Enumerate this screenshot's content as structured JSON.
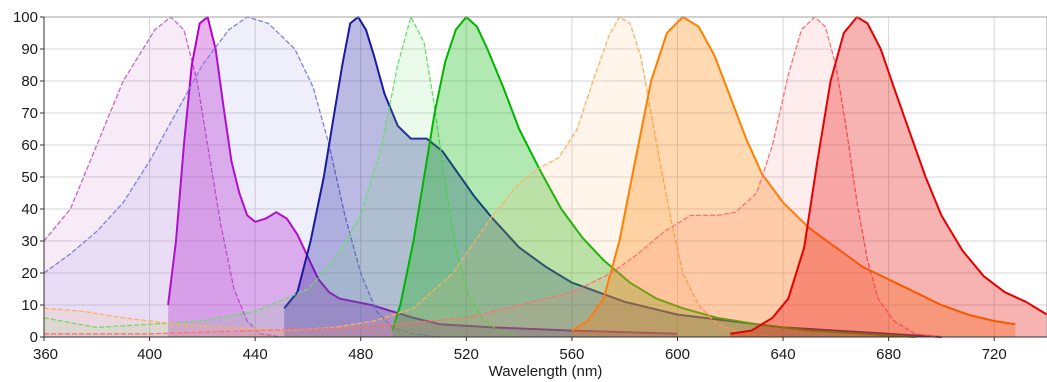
{
  "chart_data": {
    "type": "area",
    "title": "",
    "xlabel": "Wavelength (nm)",
    "ylabel": "",
    "xlim": [
      360,
      740
    ],
    "ylim": [
      0,
      100
    ],
    "x_ticks": [
      360,
      400,
      440,
      480,
      520,
      560,
      600,
      640,
      680,
      720
    ],
    "y_ticks": [
      0,
      10,
      20,
      30,
      40,
      50,
      60,
      70,
      80,
      90,
      100
    ],
    "grid": true,
    "legend": "none",
    "series": [
      {
        "color": "#c766c7",
        "line": "dashed",
        "role": "excitation",
        "points": [
          [
            360,
            30
          ],
          [
            370,
            40
          ],
          [
            380,
            60
          ],
          [
            390,
            80
          ],
          [
            396,
            88
          ],
          [
            402,
            96
          ],
          [
            408,
            100
          ],
          [
            413,
            96
          ],
          [
            418,
            80
          ],
          [
            422,
            60
          ],
          [
            427,
            35
          ],
          [
            432,
            15
          ],
          [
            437,
            5
          ],
          [
            442,
            1
          ],
          [
            450,
            0
          ]
        ]
      },
      {
        "color": "#b400c8",
        "line": "solid",
        "role": "emission",
        "points": [
          [
            407,
            10
          ],
          [
            410,
            30
          ],
          [
            413,
            60
          ],
          [
            416,
            85
          ],
          [
            419,
            98
          ],
          [
            422,
            100
          ],
          [
            425,
            90
          ],
          [
            428,
            72
          ],
          [
            431,
            55
          ],
          [
            434,
            45
          ],
          [
            437,
            38
          ],
          [
            440,
            36
          ],
          [
            444,
            37
          ],
          [
            448,
            39
          ],
          [
            452,
            37
          ],
          [
            456,
            32
          ],
          [
            460,
            25
          ],
          [
            464,
            18
          ],
          [
            468,
            14
          ],
          [
            472,
            12
          ],
          [
            478,
            11
          ],
          [
            484,
            10
          ],
          [
            492,
            8
          ],
          [
            500,
            6
          ],
          [
            510,
            4
          ],
          [
            530,
            3
          ],
          [
            560,
            2
          ],
          [
            600,
            1
          ]
        ]
      },
      {
        "color": "#8080e0",
        "line": "dashed",
        "role": "excitation",
        "points": [
          [
            360,
            20
          ],
          [
            370,
            26
          ],
          [
            380,
            33
          ],
          [
            390,
            42
          ],
          [
            400,
            55
          ],
          [
            410,
            70
          ],
          [
            420,
            85
          ],
          [
            430,
            96
          ],
          [
            437,
            100
          ],
          [
            445,
            98
          ],
          [
            455,
            90
          ],
          [
            462,
            78
          ],
          [
            468,
            60
          ],
          [
            474,
            38
          ],
          [
            480,
            20
          ],
          [
            486,
            8
          ],
          [
            492,
            3
          ],
          [
            500,
            1
          ],
          [
            510,
            0
          ]
        ]
      },
      {
        "color": "#1a1aa0",
        "line": "solid",
        "role": "emission",
        "points": [
          [
            451,
            9
          ],
          [
            456,
            14
          ],
          [
            461,
            30
          ],
          [
            466,
            50
          ],
          [
            470,
            70
          ],
          [
            473,
            85
          ],
          [
            476,
            98
          ],
          [
            479,
            100
          ],
          [
            482,
            96
          ],
          [
            485,
            88
          ],
          [
            489,
            76
          ],
          [
            494,
            66
          ],
          [
            499,
            62
          ],
          [
            505,
            62
          ],
          [
            511,
            58
          ],
          [
            517,
            51
          ],
          [
            523,
            44
          ],
          [
            530,
            37
          ],
          [
            540,
            28
          ],
          [
            550,
            22
          ],
          [
            560,
            17
          ],
          [
            570,
            14
          ],
          [
            580,
            11
          ],
          [
            590,
            9
          ],
          [
            600,
            7
          ],
          [
            620,
            5
          ],
          [
            640,
            3
          ],
          [
            660,
            2
          ],
          [
            680,
            1
          ],
          [
            700,
            0
          ]
        ]
      },
      {
        "color": "#66e066",
        "line": "dashed",
        "role": "excitation",
        "points": [
          [
            360,
            6
          ],
          [
            380,
            3
          ],
          [
            400,
            4
          ],
          [
            420,
            5
          ],
          [
            440,
            8
          ],
          [
            460,
            15
          ],
          [
            470,
            24
          ],
          [
            480,
            38
          ],
          [
            488,
            60
          ],
          [
            494,
            85
          ],
          [
            499,
            100
          ],
          [
            504,
            92
          ],
          [
            508,
            72
          ],
          [
            512,
            48
          ],
          [
            516,
            28
          ],
          [
            520,
            15
          ],
          [
            526,
            6
          ],
          [
            532,
            2
          ],
          [
            540,
            0
          ]
        ]
      },
      {
        "color": "#00b400",
        "line": "solid",
        "role": "emission",
        "points": [
          [
            492,
            2
          ],
          [
            495,
            10
          ],
          [
            500,
            30
          ],
          [
            504,
            50
          ],
          [
            508,
            70
          ],
          [
            512,
            86
          ],
          [
            516,
            96
          ],
          [
            520,
            100
          ],
          [
            524,
            97
          ],
          [
            528,
            90
          ],
          [
            534,
            78
          ],
          [
            540,
            65
          ],
          [
            548,
            52
          ],
          [
            556,
            40
          ],
          [
            564,
            31
          ],
          [
            572,
            24
          ],
          [
            582,
            17
          ],
          [
            592,
            12
          ],
          [
            602,
            9
          ],
          [
            615,
            6
          ],
          [
            630,
            4
          ],
          [
            650,
            2
          ],
          [
            670,
            1
          ],
          [
            690,
            0
          ]
        ]
      },
      {
        "color": "#ffb060",
        "line": "dashed",
        "role": "excitation",
        "points": [
          [
            360,
            9
          ],
          [
            375,
            8
          ],
          [
            390,
            6
          ],
          [
            410,
            4
          ],
          [
            430,
            3
          ],
          [
            450,
            2
          ],
          [
            470,
            3
          ],
          [
            485,
            5
          ],
          [
            500,
            9
          ],
          [
            515,
            20
          ],
          [
            530,
            38
          ],
          [
            540,
            48
          ],
          [
            548,
            53
          ],
          [
            555,
            56
          ],
          [
            562,
            65
          ],
          [
            568,
            80
          ],
          [
            574,
            94
          ],
          [
            578,
            100
          ],
          [
            582,
            98
          ],
          [
            586,
            88
          ],
          [
            590,
            70
          ],
          [
            594,
            52
          ],
          [
            598,
            35
          ],
          [
            602,
            20
          ],
          [
            608,
            10
          ],
          [
            615,
            4
          ],
          [
            625,
            1
          ],
          [
            640,
            0
          ]
        ]
      },
      {
        "color": "#ff8000",
        "line": "solid",
        "role": "emission",
        "points": [
          [
            560,
            2
          ],
          [
            566,
            5
          ],
          [
            572,
            12
          ],
          [
            578,
            30
          ],
          [
            584,
            55
          ],
          [
            590,
            80
          ],
          [
            596,
            95
          ],
          [
            602,
            100
          ],
          [
            608,
            97
          ],
          [
            614,
            88
          ],
          [
            620,
            75
          ],
          [
            626,
            62
          ],
          [
            632,
            51
          ],
          [
            640,
            42
          ],
          [
            650,
            34
          ],
          [
            660,
            28
          ],
          [
            670,
            22
          ],
          [
            680,
            18
          ],
          [
            690,
            14
          ],
          [
            700,
            10
          ],
          [
            710,
            7
          ],
          [
            720,
            5
          ],
          [
            728,
            4
          ]
        ]
      },
      {
        "color": "#ff7070",
        "line": "dashed",
        "role": "excitation",
        "points": [
          [
            360,
            1
          ],
          [
            400,
            1
          ],
          [
            440,
            2
          ],
          [
            480,
            3
          ],
          [
            520,
            6
          ],
          [
            540,
            10
          ],
          [
            560,
            14
          ],
          [
            575,
            20
          ],
          [
            585,
            26
          ],
          [
            595,
            33
          ],
          [
            605,
            38
          ],
          [
            615,
            38
          ],
          [
            622,
            39
          ],
          [
            630,
            45
          ],
          [
            636,
            60
          ],
          [
            642,
            82
          ],
          [
            647,
            96
          ],
          [
            652,
            100
          ],
          [
            656,
            97
          ],
          [
            660,
            85
          ],
          [
            664,
            65
          ],
          [
            668,
            42
          ],
          [
            672,
            24
          ],
          [
            676,
            12
          ],
          [
            682,
            5
          ],
          [
            690,
            1
          ],
          [
            700,
            0
          ]
        ]
      },
      {
        "color": "#e60000",
        "line": "solid",
        "role": "emission",
        "points": [
          [
            620,
            1
          ],
          [
            628,
            2
          ],
          [
            636,
            6
          ],
          [
            642,
            12
          ],
          [
            648,
            28
          ],
          [
            653,
            55
          ],
          [
            658,
            80
          ],
          [
            663,
            95
          ],
          [
            668,
            100
          ],
          [
            672,
            98
          ],
          [
            677,
            90
          ],
          [
            682,
            78
          ],
          [
            688,
            64
          ],
          [
            694,
            50
          ],
          [
            700,
            38
          ],
          [
            708,
            27
          ],
          [
            716,
            19
          ],
          [
            724,
            14
          ],
          [
            732,
            11
          ],
          [
            740,
            7
          ]
        ]
      }
    ]
  }
}
